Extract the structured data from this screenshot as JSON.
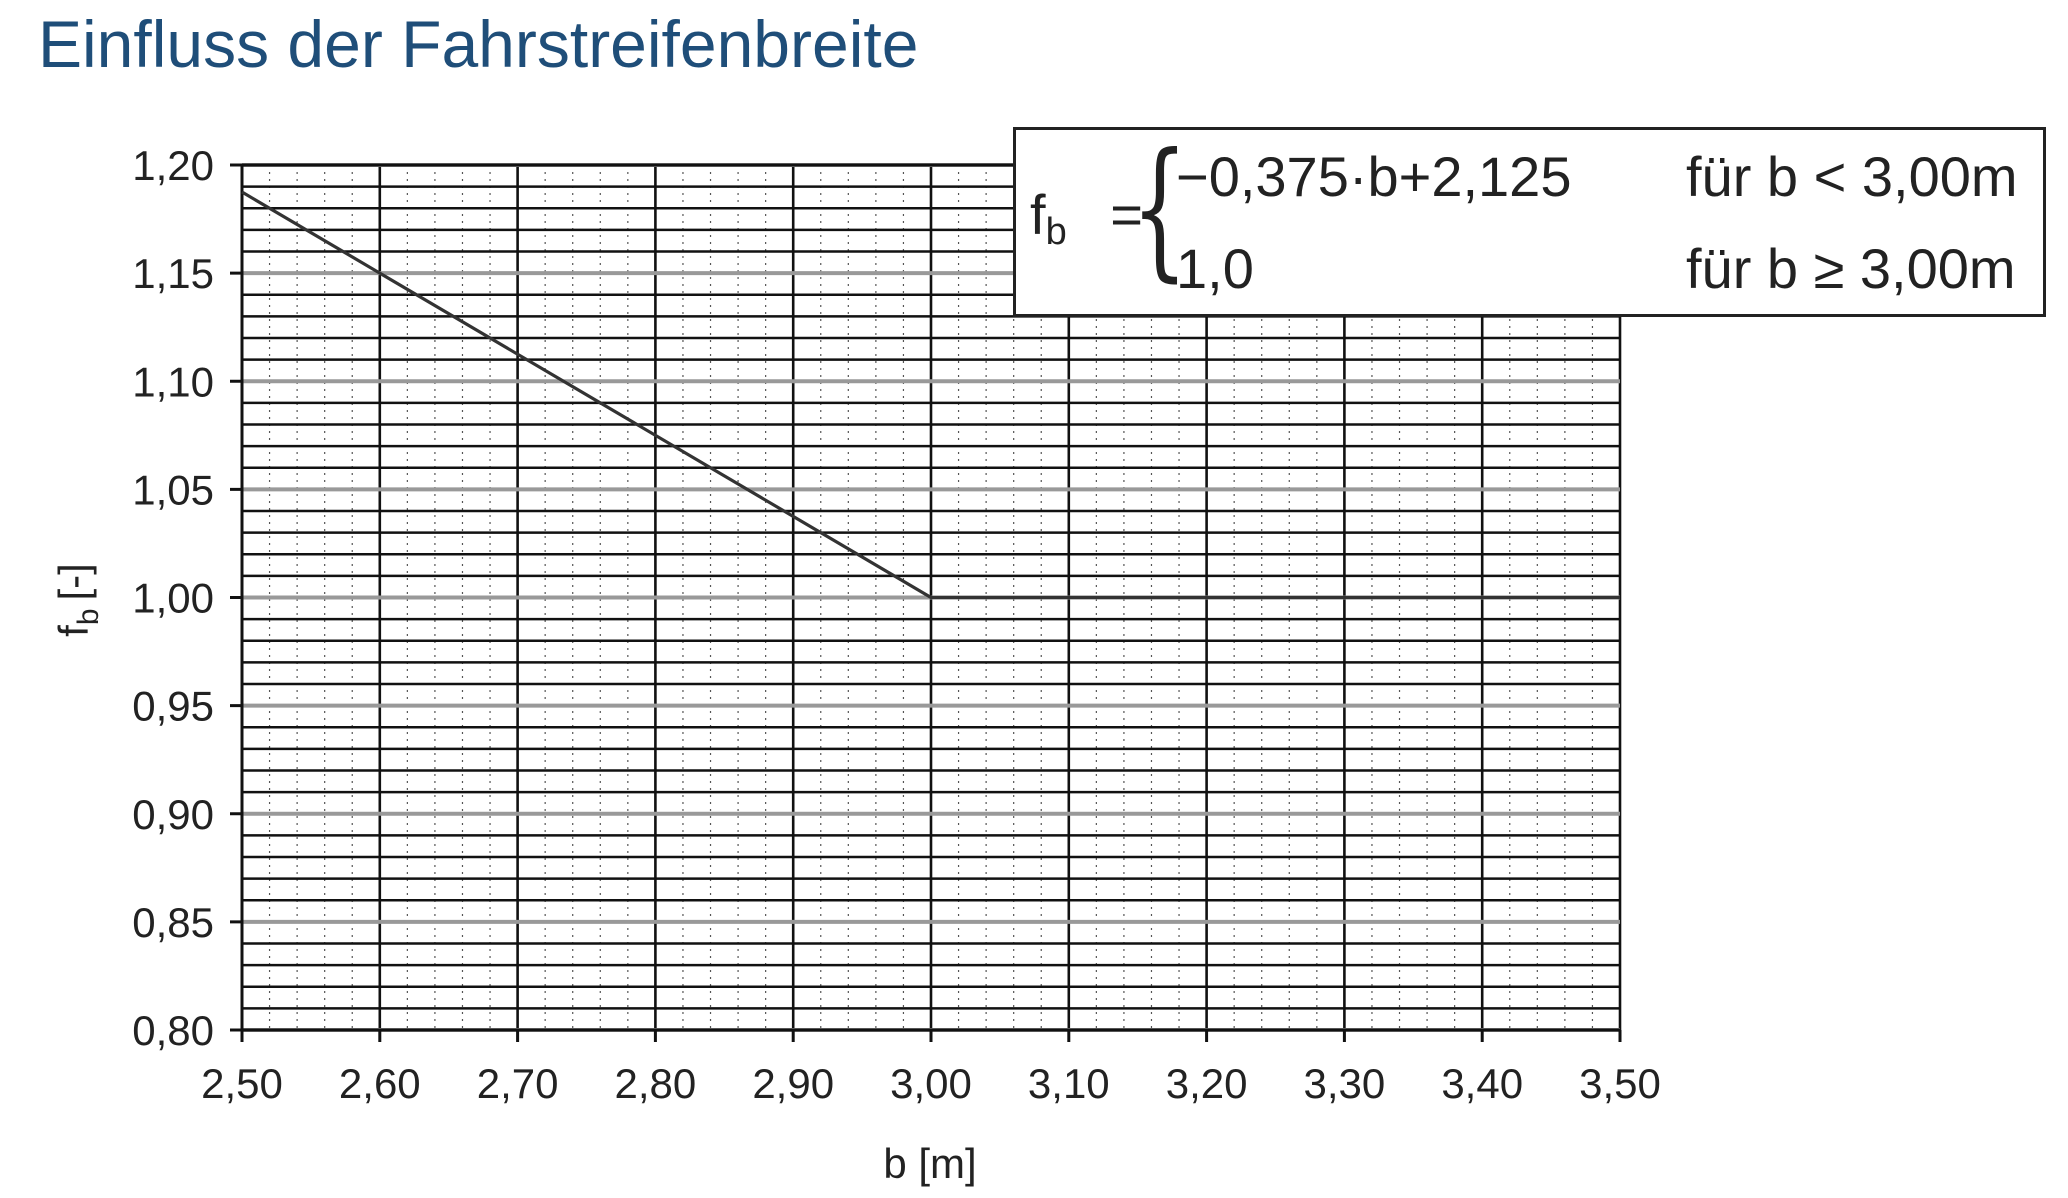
{
  "page": {
    "title": "Einfluss der Fahrstreifenbreite"
  },
  "formula": {
    "lhs": "f",
    "lhs_sub": "b",
    "equals": "=",
    "case1_expr": "−0,375·b+2,125",
    "case1_cond": "für b < 3,00m",
    "case2_expr": "1,0",
    "case2_cond": "für b ≥ 3,00m"
  },
  "chart_data": {
    "type": "line",
    "title": "",
    "xlabel": "b [m]",
    "ylabel": "f",
    "ylabel_sub": "b",
    "ylabel_unit": "[-]",
    "xlim": [
      2.5,
      3.5
    ],
    "ylim": [
      0.8,
      1.2
    ],
    "x_ticks": [
      "2,50",
      "2,60",
      "2,70",
      "2,80",
      "2,90",
      "3,00",
      "3,10",
      "3,20",
      "3,30",
      "3,40",
      "3,50"
    ],
    "y_ticks": [
      "1,20",
      "1,15",
      "1,10",
      "1,05",
      "1,00",
      "0,95",
      "0,90",
      "0,85",
      "0,80"
    ],
    "grid": true,
    "series": [
      {
        "x": [
          2.5,
          3.0,
          3.5
        ],
        "y": [
          1.1875,
          1.0,
          1.0
        ],
        "color": "#333333"
      }
    ]
  }
}
